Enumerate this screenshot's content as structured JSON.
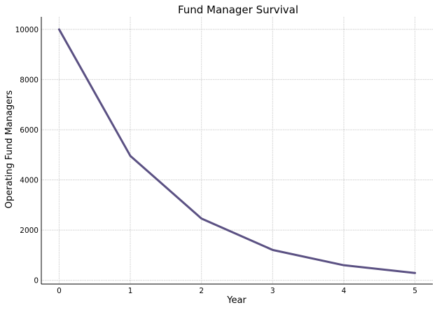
{
  "chart_data": {
    "type": "line",
    "title": "Fund Manager Survival",
    "xlabel": "Year",
    "ylabel": "Operating Fund Managers",
    "x": [
      0,
      1,
      2,
      3,
      4,
      5
    ],
    "series": [
      {
        "values": [
          10000,
          4960,
          2460,
          1210,
          600,
          290
        ]
      }
    ],
    "xlim": [
      -0.25,
      5.25
    ],
    "ylim": [
      -150,
      10500
    ],
    "xticks": [
      0,
      1,
      2,
      3,
      4,
      5
    ],
    "yticks": [
      0,
      2000,
      4000,
      6000,
      8000,
      10000
    ],
    "grid": true,
    "line_color": "#5b5183"
  }
}
